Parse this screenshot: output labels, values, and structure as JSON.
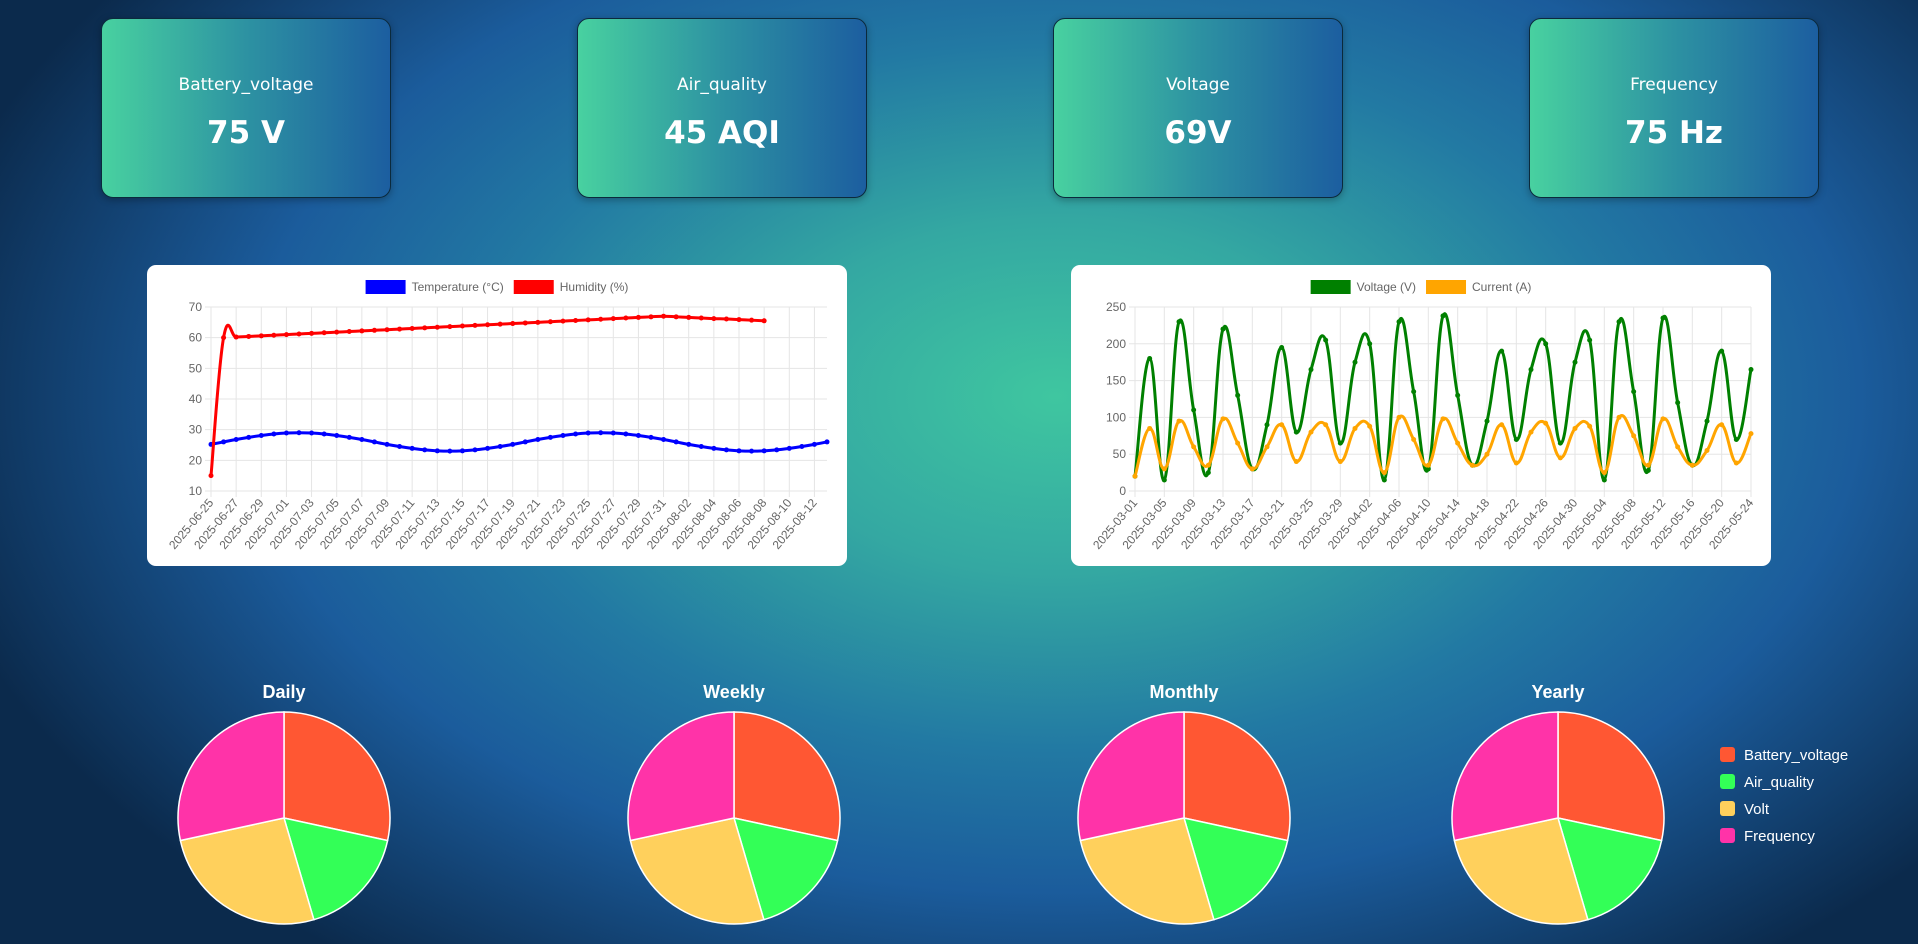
{
  "cards": [
    {
      "title": "Battery_voltage",
      "value": "75 V"
    },
    {
      "title": "Air_quality",
      "value": "45 AQI"
    },
    {
      "title": "Voltage",
      "value": "69V"
    },
    {
      "title": "Frequency",
      "value": "75 Hz"
    }
  ],
  "chart_data": [
    {
      "type": "line",
      "legend": "top",
      "grid": true,
      "categories": [
        "2025-06-25",
        null,
        "2025-06-27",
        null,
        "2025-06-29",
        null,
        "2025-07-01",
        null,
        "2025-07-03",
        null,
        "2025-07-05",
        null,
        "2025-07-07",
        null,
        "2025-07-09",
        null,
        "2025-07-11",
        null,
        "2025-07-13",
        null,
        "2025-07-15",
        null,
        "2025-07-17",
        null,
        "2025-07-19",
        null,
        "2025-07-21",
        null,
        "2025-07-23",
        null,
        "2025-07-25",
        null,
        "2025-07-27",
        null,
        "2025-07-29",
        null,
        "2025-07-31",
        null,
        "2025-08-02",
        null,
        "2025-08-04",
        null,
        "2025-08-06",
        null,
        "2025-08-08",
        null,
        "2025-08-10",
        null,
        "2025-08-12",
        null
      ],
      "ylim": [
        10,
        70
      ],
      "yticks": [
        10,
        20,
        30,
        40,
        50,
        60,
        70
      ],
      "series": [
        {
          "name": "Temperature (°C)",
          "color": "#0000ff",
          "values": [
            25.2,
            26,
            26.8,
            27.5,
            28.1,
            28.6,
            28.9,
            29,
            28.9,
            28.6,
            28.1,
            27.5,
            26.8,
            26,
            25.2,
            24.5,
            23.9,
            23.4,
            23.1,
            23,
            23.1,
            23.4,
            23.9,
            24.5,
            25.2,
            26,
            26.8,
            27.5,
            28.1,
            28.6,
            28.9,
            29,
            28.9,
            28.6,
            28.1,
            27.5,
            26.8,
            26,
            25.2,
            24.5,
            23.9,
            23.4,
            23.1,
            23,
            23.1,
            23.4,
            23.9,
            24.5,
            25.2,
            26
          ]
        },
        {
          "name": "Humidity (%)",
          "color": "#ff0000",
          "values": [
            15,
            60,
            60.2,
            60.4,
            60.6,
            60.8,
            61,
            61.2,
            61.4,
            61.6,
            61.8,
            62,
            62.2,
            62.4,
            62.6,
            62.8,
            63,
            63.2,
            63.4,
            63.6,
            63.8,
            64,
            64.2,
            64.4,
            64.6,
            64.8,
            65,
            65.2,
            65.4,
            65.6,
            65.8,
            66,
            66.2,
            66.4,
            66.6,
            66.8,
            67,
            66.8,
            66.6,
            66.4,
            66.2,
            66.1,
            65.9,
            65.7,
            65.5,
            null,
            null,
            null,
            null,
            null
          ]
        }
      ]
    },
    {
      "type": "line",
      "legend": "top",
      "grid": true,
      "categories": [
        "2025-03-01",
        null,
        "2025-03-05",
        null,
        "2025-03-09",
        null,
        "2025-03-13",
        null,
        "2025-03-17",
        null,
        "2025-03-21",
        null,
        "2025-03-25",
        null,
        "2025-03-29",
        null,
        "2025-04-02",
        null,
        "2025-04-06",
        null,
        "2025-04-10",
        null,
        "2025-04-14",
        null,
        "2025-04-18",
        null,
        "2025-04-22",
        null,
        "2025-04-26",
        null,
        "2025-04-30",
        null,
        "2025-05-04",
        null,
        "2025-05-08",
        null,
        "2025-05-12",
        null,
        "2025-05-16",
        null,
        "2025-05-20",
        null,
        "2025-05-24"
      ],
      "ylim": [
        0,
        250
      ],
      "yticks": [
        0,
        50,
        100,
        150,
        200,
        250
      ],
      "series": [
        {
          "name": "Voltage (V)",
          "color": "#008000",
          "values": [
            20,
            180,
            15,
            230,
            110,
            25,
            220,
            130,
            30,
            90,
            195,
            80,
            165,
            205,
            65,
            175,
            200,
            15,
            230,
            135,
            30,
            238,
            130,
            35,
            95,
            190,
            70,
            165,
            200,
            65,
            175,
            205,
            15,
            230,
            135,
            28,
            235,
            120,
            35,
            95,
            190,
            70,
            165
          ]
        },
        {
          "name": "Current (A)",
          "color": "#ffa500",
          "values": [
            20,
            85,
            30,
            95,
            60,
            35,
            98,
            65,
            30,
            60,
            90,
            40,
            80,
            90,
            40,
            85,
            88,
            25,
            100,
            70,
            35,
            98,
            65,
            35,
            50,
            90,
            38,
            80,
            92,
            45,
            85,
            88,
            25,
            100,
            75,
            35,
            98,
            60,
            35,
            55,
            90,
            38,
            78
          ]
        }
      ]
    },
    {
      "type": "pie",
      "title": "Daily",
      "categories": [
        "Battery_voltage",
        "Air_quality",
        "Volt",
        "Frequency"
      ],
      "values": [
        75,
        45,
        69,
        75
      ],
      "colors": [
        "#ff5733",
        "#33ff57",
        "#ffd05c",
        "#ff33a8"
      ]
    },
    {
      "type": "pie",
      "title": "Weekly",
      "categories": [
        "Battery_voltage",
        "Air_quality",
        "Volt",
        "Frequency"
      ],
      "values": [
        75,
        45,
        69,
        75
      ],
      "colors": [
        "#ff5733",
        "#33ff57",
        "#ffd05c",
        "#ff33a8"
      ]
    },
    {
      "type": "pie",
      "title": "Monthly",
      "categories": [
        "Battery_voltage",
        "Air_quality",
        "Volt",
        "Frequency"
      ],
      "values": [
        75,
        45,
        69,
        75
      ],
      "colors": [
        "#ff5733",
        "#33ff57",
        "#ffd05c",
        "#ff33a8"
      ]
    },
    {
      "type": "pie",
      "title": "Yearly",
      "legend": "right",
      "categories": [
        "Battery_voltage",
        "Air_quality",
        "Volt",
        "Frequency"
      ],
      "values": [
        75,
        45,
        69,
        75
      ],
      "colors": [
        "#ff5733",
        "#33ff57",
        "#ffd05c",
        "#ff33a8"
      ]
    }
  ]
}
